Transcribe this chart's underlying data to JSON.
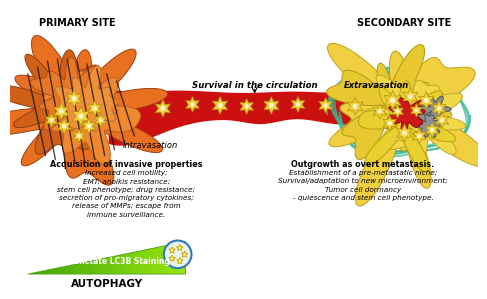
{
  "bg_color": "#ffffff",
  "primary_site_label": "PRIMARY SITE",
  "secondary_site_label": "SECONDARY SITE",
  "survival_label": "Survival in the circulation",
  "intravasation_label": "Intravasation",
  "extravasation_label": "Extravasation",
  "left_text_bold": "Acquisition of invasive properties",
  "left_text_lines": [
    "Increased cell motility;",
    "EMT; anoikis resistance;",
    "stem cell phenotype; drug resistance;",
    "secretion of pro-migratory cytokines;",
    "release of MMPs; escape from",
    "immune surveillance."
  ],
  "right_text_bold": "Outgrowth as overt metastasis.",
  "right_text_lines": [
    "Establishment of a pre-metastatic niche;",
    "Survival/adaptation to new microenvironment;",
    "Tumor cell dormancy",
    "- quiescence and stem cell phenotype."
  ],
  "autophagy_label": "AUTOPHAGY",
  "lc3b_label": "Punctate LC3B Staining",
  "vessel_color": "#CC1010",
  "star_color": "#F0D040",
  "star_edge": "#B09000",
  "orange_tumor": "#E87020",
  "yellow_tumor": "#F0D848",
  "teal_color": "#30A880",
  "gray_color": "#888888",
  "lc3b_circle_color": "#3377BB"
}
